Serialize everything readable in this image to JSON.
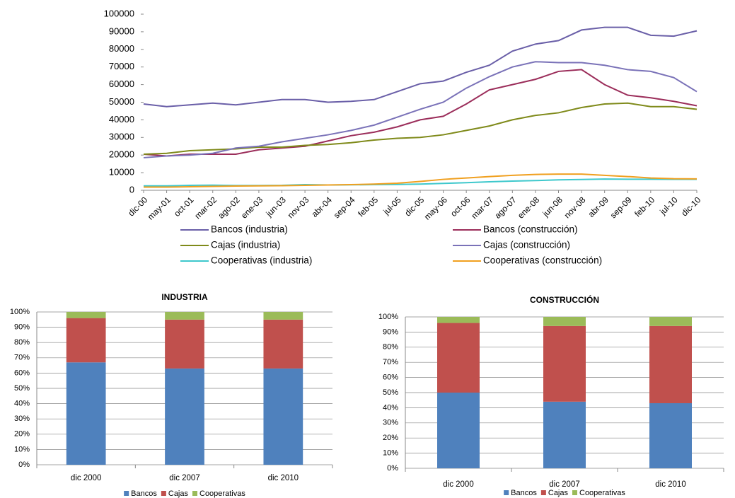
{
  "chart_data": [
    {
      "type": "line",
      "categories": [
        "dic-00",
        "may-01",
        "oct-01",
        "mar-02",
        "ago-02",
        "ene-03",
        "jun-03",
        "nov-03",
        "abr-04",
        "sep-04",
        "feb-05",
        "jul-05",
        "dic-05",
        "may-06",
        "oct-06",
        "mar-07",
        "ago-07",
        "ene-08",
        "jun-08",
        "nov-08",
        "abr-09",
        "sep-09",
        "feb-10",
        "jul-10",
        "dic-10"
      ],
      "ylim": [
        0,
        100000
      ],
      "yticks": [
        0,
        10000,
        20000,
        30000,
        40000,
        50000,
        60000,
        70000,
        80000,
        90000,
        100000
      ],
      "grid": false,
      "legend": "bottom",
      "series": [
        {
          "name": "Bancos (industria)",
          "color": "#6a5fa8",
          "values": [
            49000,
            47500,
            48500,
            49500,
            48500,
            50000,
            51500,
            51500,
            50000,
            50500,
            51500,
            56000,
            60500,
            62000,
            67000,
            71000,
            79000,
            83000,
            85000,
            91000,
            92500,
            92500,
            88000,
            87500,
            90500
          ]
        },
        {
          "name": "Bancos (construcción)",
          "color": "#9b2d5a",
          "values": [
            20500,
            19500,
            20500,
            20500,
            20500,
            23000,
            24000,
            25000,
            28000,
            31000,
            33000,
            36000,
            40000,
            42000,
            49000,
            57000,
            60000,
            63000,
            67500,
            68500,
            60000,
            54000,
            52500,
            50500,
            48000
          ]
        },
        {
          "name": "Cajas (industria)",
          "color": "#7f8a1a",
          "values": [
            20500,
            21000,
            22500,
            23000,
            23500,
            24500,
            24500,
            25500,
            26000,
            27000,
            28500,
            29500,
            30000,
            31500,
            34000,
            36500,
            40000,
            42500,
            44000,
            47000,
            49000,
            49500,
            47500,
            47500,
            46000
          ]
        },
        {
          "name": "Cajas (construcción)",
          "color": "#7a72b8",
          "values": [
            18500,
            19500,
            20000,
            21000,
            24000,
            25000,
            27500,
            29500,
            31500,
            34000,
            37000,
            41500,
            46000,
            50000,
            58000,
            64500,
            70000,
            73000,
            72500,
            72500,
            71000,
            68500,
            67500,
            64000,
            56000
          ]
        },
        {
          "name": "Cooperativas (industria)",
          "color": "#3ec8cc",
          "values": [
            2500,
            2500,
            2800,
            2900,
            2700,
            2700,
            2800,
            3200,
            3000,
            3100,
            3200,
            3300,
            3500,
            3900,
            4300,
            4800,
            5200,
            5500,
            5900,
            6100,
            6400,
            6300,
            6300,
            6200,
            6200
          ]
        },
        {
          "name": "Cooperativas (construcción)",
          "color": "#f0a020",
          "values": [
            1800,
            1800,
            2000,
            2200,
            2400,
            2500,
            2600,
            2800,
            3000,
            3200,
            3500,
            4000,
            5000,
            6200,
            7000,
            7800,
            8500,
            9000,
            9200,
            9200,
            8500,
            7800,
            7000,
            6600,
            6500
          ]
        }
      ]
    },
    {
      "type": "bar",
      "stacked": true,
      "title": "INDUSTRIA",
      "categories": [
        "dic 2000",
        "dic 2007",
        "dic 2010"
      ],
      "ylim": [
        0,
        100
      ],
      "yticks": [
        {
          "value": 0,
          "label": "0%"
        },
        {
          "value": 10,
          "label": "10%"
        },
        {
          "value": 20,
          "label": "20%"
        },
        {
          "value": 30,
          "label": "30%"
        },
        {
          "value": 40,
          "label": "40%"
        },
        {
          "value": 50,
          "label": "50%"
        },
        {
          "value": 60,
          "label": "60%"
        },
        {
          "value": 70,
          "label": "70%"
        },
        {
          "value": 80,
          "label": "80%"
        },
        {
          "value": 90,
          "label": "90%"
        },
        {
          "value": 100,
          "label": "100%"
        }
      ],
      "grid": true,
      "legend": "bottom",
      "series": [
        {
          "name": "Bancos",
          "color": "#4f81bd",
          "values": [
            67,
            63,
            63
          ]
        },
        {
          "name": "Cajas",
          "color": "#c0504d",
          "values": [
            29,
            32,
            32
          ]
        },
        {
          "name": "Cooperativas",
          "color": "#9bbb59",
          "values": [
            4,
            5,
            5
          ]
        }
      ]
    },
    {
      "type": "bar",
      "stacked": true,
      "title": "CONSTRUCCIÓN",
      "categories": [
        "dic 2000",
        "dic 2007",
        "dic 2010"
      ],
      "ylim": [
        0,
        100
      ],
      "yticks": [
        {
          "value": 0,
          "label": "0%"
        },
        {
          "value": 10,
          "label": "10%"
        },
        {
          "value": 20,
          "label": "20%"
        },
        {
          "value": 30,
          "label": "30%"
        },
        {
          "value": 40,
          "label": "40%"
        },
        {
          "value": 50,
          "label": "50%"
        },
        {
          "value": 60,
          "label": "60%"
        },
        {
          "value": 70,
          "label": "70%"
        },
        {
          "value": 80,
          "label": "80%"
        },
        {
          "value": 90,
          "label": "90%"
        },
        {
          "value": 100,
          "label": "100%"
        }
      ],
      "grid": true,
      "legend": "bottom",
      "series": [
        {
          "name": "Bancos",
          "color": "#4f81bd",
          "values": [
            50,
            44,
            43
          ]
        },
        {
          "name": "Cajas",
          "color": "#c0504d",
          "values": [
            46,
            50,
            51
          ]
        },
        {
          "name": "Cooperativas",
          "color": "#9bbb59",
          "values": [
            4,
            6,
            6
          ]
        }
      ]
    }
  ]
}
